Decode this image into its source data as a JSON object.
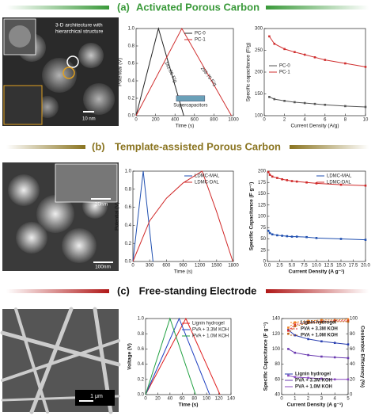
{
  "sections": [
    {
      "label": "(a)",
      "title": "Activated Porous Carbon"
    },
    {
      "label": "(b)",
      "title": "Template-assisted Porous Carbon"
    },
    {
      "label": "(c)",
      "title": "Free-standing Electrode"
    }
  ],
  "images": [
    {
      "caption": [
        "3-D architecture with",
        "hierarchical structure"
      ],
      "scale": "10 nm"
    },
    {
      "scale": "20nm",
      "scale2": "100nm"
    },
    {
      "scale": "1 μm"
    }
  ],
  "chart_data": [
    {
      "type": "line",
      "xlabel": "Time (s)",
      "ylabel": "Potential (V)",
      "xlim": [
        0,
        1000
      ],
      "xticks": [
        0,
        200,
        400,
        600,
        800,
        1000
      ],
      "ylim": [
        0,
        1
      ],
      "yticks": [
        {
          "value": 0,
          "label": "0.0"
        },
        0.2,
        0.4,
        0.6,
        0.8,
        {
          "value": 1,
          "label": "1.0"
        }
      ],
      "legend": "upper right",
      "annotations": [
        "141.06 F/g",
        "269.75 F/g",
        "Supercapacitors"
      ],
      "series": [
        {
          "name": "PC-0",
          "color": "#222222",
          "x": [
            0,
            230,
            490
          ],
          "values": [
            0,
            1,
            0
          ]
        },
        {
          "name": "PC-1",
          "color": "#d03030",
          "x": [
            0,
            470,
            980
          ],
          "values": [
            0,
            1,
            0
          ]
        }
      ]
    },
    {
      "type": "line",
      "xlabel": "Current Density (A/g)",
      "ylabel": "Specific capacitance (F/g)",
      "xlim": [
        0,
        10
      ],
      "xticks": [
        0,
        2,
        4,
        6,
        8,
        10
      ],
      "ylim": [
        100,
        300
      ],
      "yticks": [
        100,
        150,
        200,
        250,
        300
      ],
      "legend": "center left",
      "markers": true,
      "series": [
        {
          "name": "PC-0",
          "color": "#555555",
          "x": [
            0.5,
            1,
            2,
            3,
            4,
            5,
            6,
            8,
            10
          ],
          "values": [
            143,
            138,
            134,
            131,
            129,
            127,
            125,
            122,
            120
          ]
        },
        {
          "name": "PC-1",
          "color": "#d03030",
          "x": [
            0.5,
            1,
            2,
            3,
            4,
            5,
            6,
            8,
            10
          ],
          "values": [
            282,
            265,
            253,
            246,
            240,
            234,
            228,
            220,
            212
          ]
        }
      ]
    },
    {
      "type": "line",
      "xlabel": "Time (s)",
      "ylabel": "Potential (V)",
      "xlim": [
        0,
        1800
      ],
      "xticks": [
        0,
        300,
        600,
        900,
        1200,
        1500,
        1800
      ],
      "ylim": [
        0,
        1
      ],
      "yticks": [
        {
          "value": 0,
          "label": "0.0"
        },
        0.2,
        0.4,
        0.6,
        0.8,
        {
          "value": 1,
          "label": "1.0"
        }
      ],
      "legend": "upper right",
      "series": [
        {
          "name": "LDMC-MAL",
          "color": "#1f4fb0",
          "x": [
            0,
            185,
            360
          ],
          "values": [
            0,
            1,
            0
          ]
        },
        {
          "name": "LDMC-DAL",
          "color": "#d02828",
          "x": [
            0,
            300,
            600,
            900,
            1240,
            1500,
            1790
          ],
          "values": [
            0,
            0.45,
            0.7,
            0.87,
            1,
            0.55,
            0
          ]
        }
      ]
    },
    {
      "type": "line",
      "xlabel": "Current Density (A g⁻¹)",
      "ylabel": "Specific Capacitance (F g⁻¹)",
      "xlim": [
        0,
        20
      ],
      "xticks": [
        {
          "value": 0,
          "label": "0.0"
        },
        2.5,
        {
          "value": 5,
          "label": "5.0"
        },
        7.5,
        {
          "value": 10,
          "label": "10.0"
        },
        12.5,
        {
          "value": 15,
          "label": "15.0"
        },
        17.5,
        {
          "value": 20,
          "label": "20.0"
        }
      ],
      "ylim": [
        0,
        200
      ],
      "yticks": [
        0,
        25,
        50,
        75,
        100,
        125,
        150,
        175,
        200
      ],
      "legend": "upper right",
      "markers": true,
      "series": [
        {
          "name": "LDMC-MAL",
          "color": "#1f4fb0",
          "x": [
            0.2,
            0.5,
            1,
            2,
            3,
            4,
            5,
            6,
            8,
            10,
            15,
            20
          ],
          "values": [
            68,
            63,
            60,
            58,
            57,
            56,
            55,
            55,
            54,
            52,
            50,
            48
          ]
        },
        {
          "name": "LDMC-DAL",
          "color": "#d02828",
          "x": [
            0.2,
            0.5,
            1,
            2,
            3,
            4,
            5,
            6,
            8,
            10,
            15,
            20
          ],
          "values": [
            198,
            192,
            188,
            185,
            182,
            180,
            178,
            177,
            175,
            173,
            170,
            168
          ]
        }
      ]
    },
    {
      "type": "line",
      "xlabel": "Time (s)",
      "ylabel": "Voltage (V)",
      "xlim": [
        0,
        140
      ],
      "xticks": [
        0,
        20,
        40,
        60,
        80,
        100,
        120,
        140
      ],
      "ylim": [
        0,
        1
      ],
      "yticks": [
        {
          "value": 0,
          "label": "0.0"
        },
        0.2,
        0.4,
        0.6,
        0.8,
        {
          "value": 1,
          "label": "1.0"
        }
      ],
      "legend": "upper right",
      "series": [
        {
          "name": "Lignin hydrogel",
          "color": "#e02020",
          "x": [
            0,
            66,
            122
          ],
          "values": [
            0,
            1,
            0
          ]
        },
        {
          "name": "PVA + 3.3M KOH",
          "color": "#2040c0",
          "x": [
            0,
            55,
            105
          ],
          "values": [
            0,
            1,
            0
          ]
        },
        {
          "name": "PVA + 1.0M KOH",
          "color": "#20a040",
          "x": [
            0,
            40,
            82
          ],
          "values": [
            0,
            1,
            0
          ]
        }
      ]
    },
    {
      "type": "line",
      "xlabel": "Current Density (A g⁻¹)",
      "ylabel": "Specific Capacitance (F g⁻¹)",
      "y2label": "Coulombic Efficiency (%)",
      "xlim": [
        0,
        5
      ],
      "xticks": [
        0,
        1,
        2,
        3,
        4,
        5
      ],
      "ylim": [
        40,
        140
      ],
      "yticks": [
        40,
        60,
        80,
        100,
        120,
        140
      ],
      "y2lim": [
        0,
        100
      ],
      "y2ticks": [
        0,
        20,
        40,
        60,
        80,
        100
      ],
      "legend": "lower left",
      "legend2": "upper center",
      "markers": true,
      "series": [
        {
          "name": "Lignin hydrogel",
          "color": "#2a3fb0",
          "x": [
            0.5,
            1,
            2,
            3,
            4,
            5
          ],
          "values": [
            125,
            118,
            113,
            110,
            108,
            106
          ]
        },
        {
          "name": "PVA + 3.3M KOH",
          "color": "#6a3ab0",
          "x": [
            0.5,
            1,
            2,
            3,
            4,
            5
          ],
          "values": [
            100,
            95,
            92,
            90,
            89,
            88
          ]
        },
        {
          "name": "PVA + 1.0M KOH",
          "color": "#8a4ac0",
          "x": [
            0.5,
            1,
            2,
            3,
            4,
            5
          ],
          "values": [
            65,
            63,
            62,
            61,
            60,
            60
          ]
        },
        {
          "name": "Lignin hydrogel",
          "color": "#f08020",
          "axis": "y2",
          "dashed": true,
          "x": [
            0.5,
            1,
            2,
            3,
            4,
            5
          ],
          "values": [
            88,
            95,
            97,
            98,
            98,
            99
          ]
        },
        {
          "name": "PVA + 3.3M KOH",
          "color": "#e03030",
          "axis": "y2",
          "dashed": true,
          "x": [
            0.5,
            1,
            2,
            3,
            4,
            5
          ],
          "values": [
            84,
            92,
            95,
            96,
            97,
            97
          ]
        },
        {
          "name": "PVA + 1.0M KOH",
          "color": "#c06010",
          "axis": "y2",
          "dashed": true,
          "x": [
            0.5,
            1,
            2,
            3,
            4,
            5
          ],
          "values": [
            80,
            90,
            94,
            95,
            96,
            96
          ]
        }
      ]
    }
  ]
}
